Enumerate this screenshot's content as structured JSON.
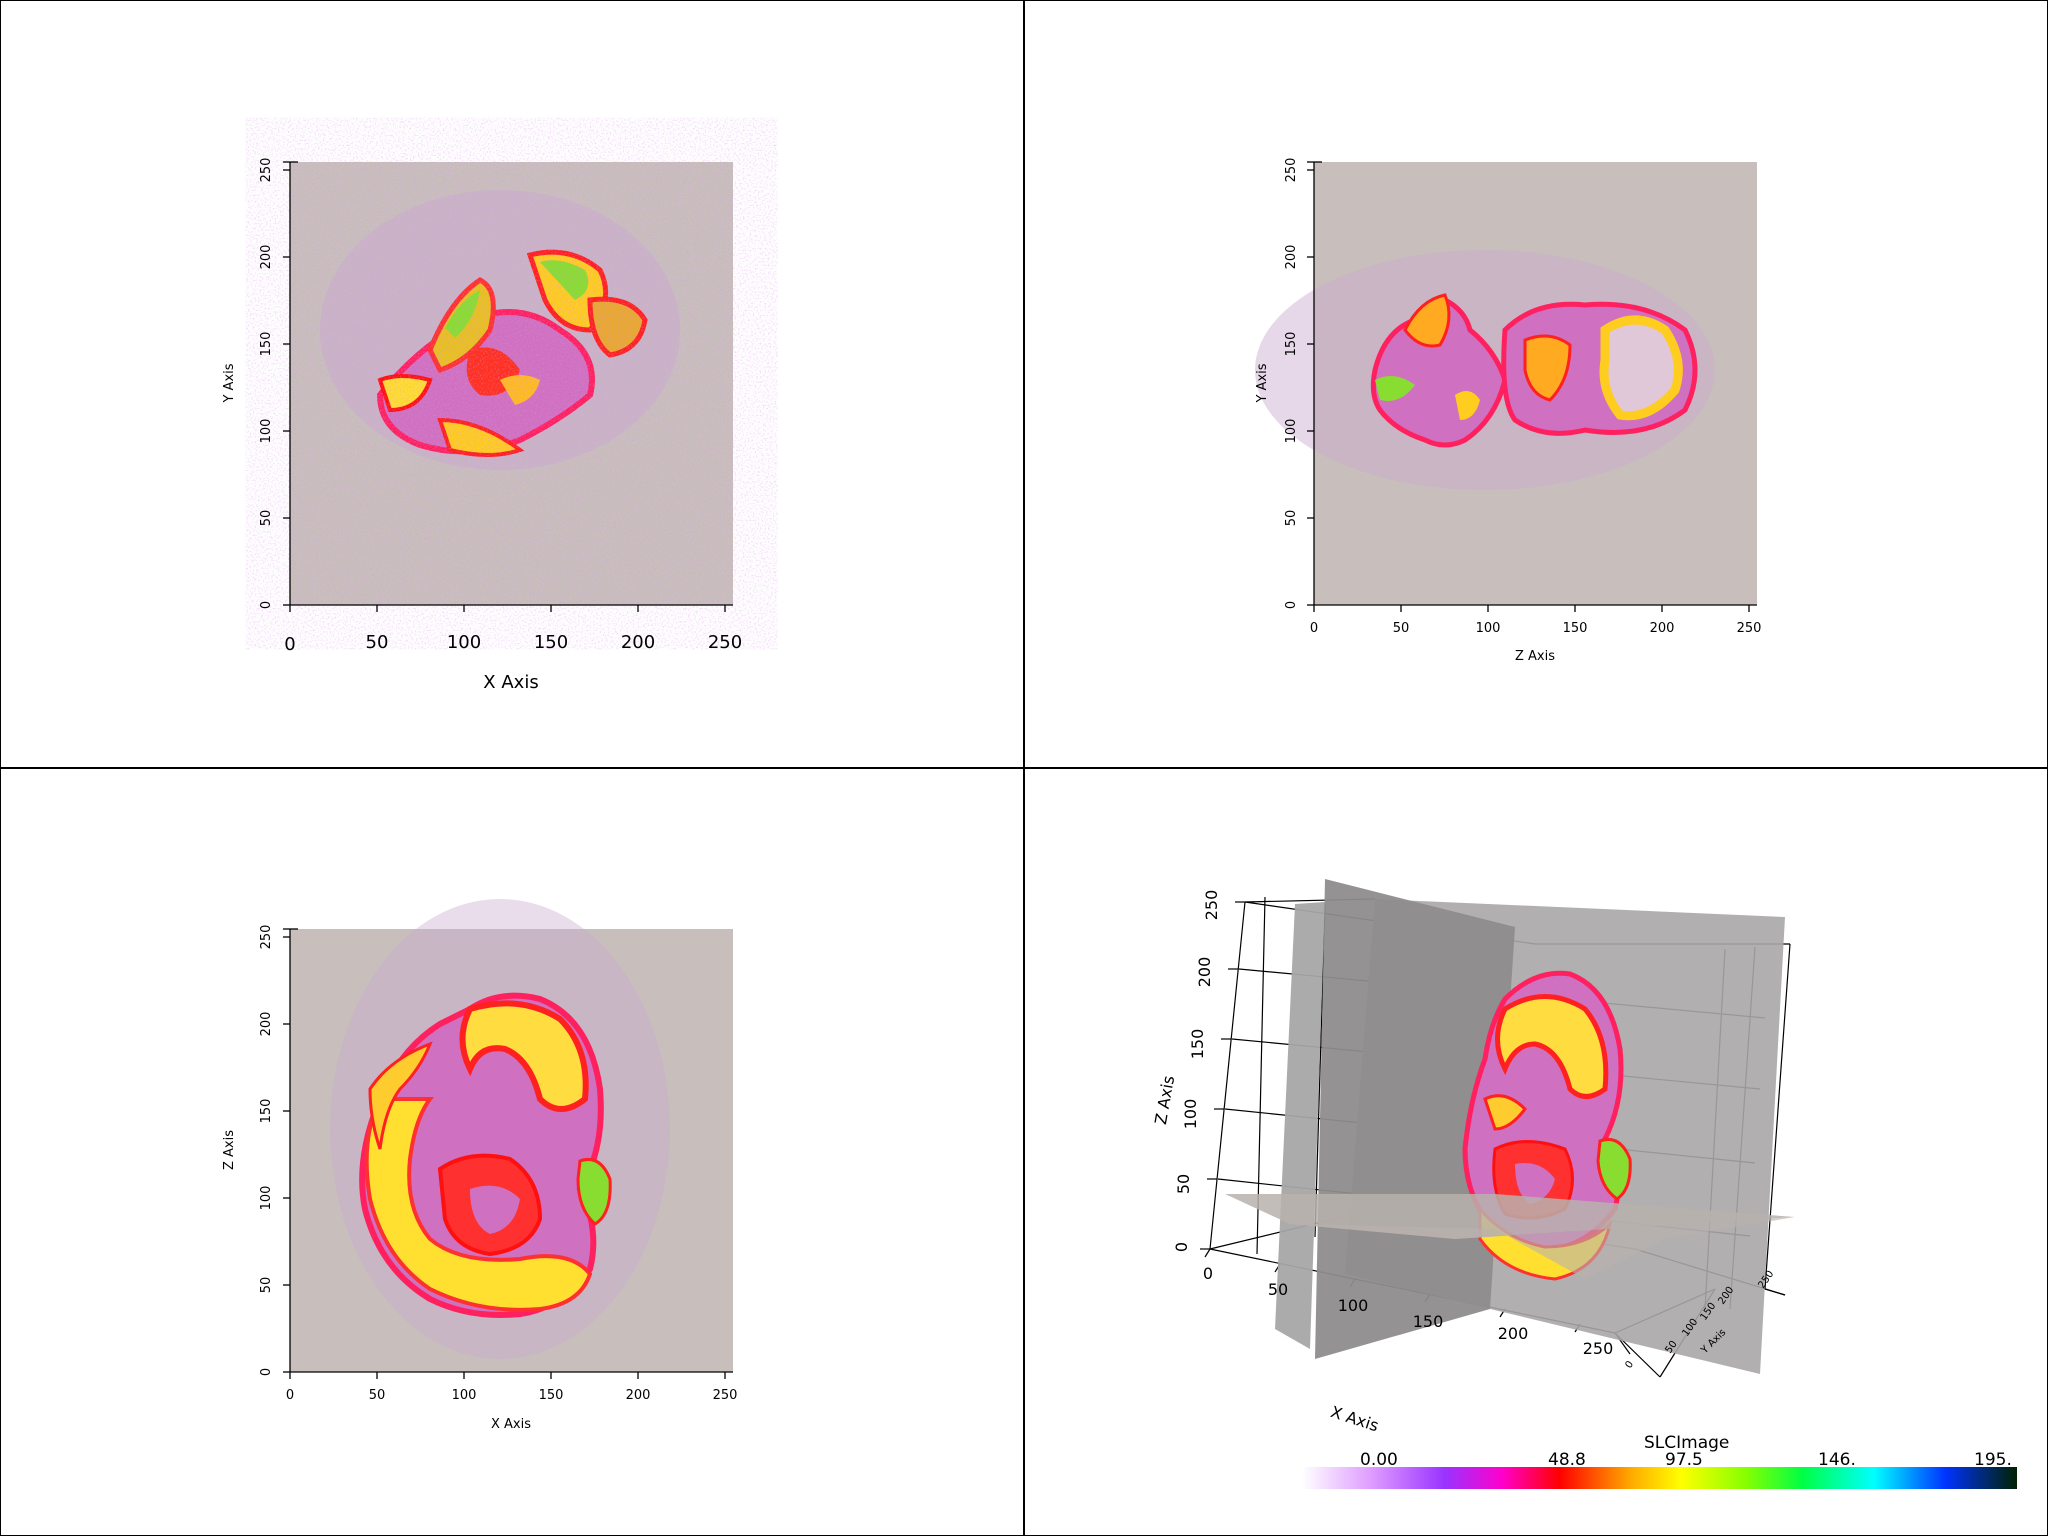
{
  "views": {
    "top_left": {
      "xlabel": "X Axis",
      "ylabel": "Y Axis",
      "xticks": [
        "0",
        "50",
        "100",
        "150",
        "200",
        "250"
      ],
      "yticks": [
        "0",
        "50",
        "100",
        "150",
        "200",
        "250"
      ]
    },
    "top_right": {
      "xlabel": "Z Axis",
      "ylabel": "Y Axis",
      "xticks": [
        "0",
        "50",
        "100",
        "150",
        "200",
        "250"
      ],
      "yticks": [
        "0",
        "50",
        "100",
        "150",
        "200",
        "250"
      ]
    },
    "bottom_left": {
      "xlabel": "X Axis",
      "ylabel": "Z Axis",
      "xticks": [
        "0",
        "50",
        "100",
        "150",
        "200",
        "250"
      ],
      "yticks": [
        "0",
        "50",
        "100",
        "150",
        "200",
        "250"
      ]
    },
    "bottom_right_3d": {
      "xlabel": "X Axis",
      "ylabel": "Y Axis",
      "zlabel": "Z Axis",
      "xticks": [
        "0",
        "50",
        "100",
        "150",
        "200",
        "250"
      ],
      "zticks": [
        "0",
        "50",
        "100",
        "150",
        "200",
        "250"
      ],
      "yticks": [
        "0",
        "50",
        "100",
        "150",
        "200",
        "250"
      ]
    }
  },
  "colorbar": {
    "title": "SLCImage",
    "labels": [
      "0.00",
      "48.8",
      "97.5",
      "146.",
      "195."
    ],
    "colors": [
      "#ffffff",
      "#cc66ff",
      "#ff00cc",
      "#ff0000",
      "#ffcc00",
      "#ffff00",
      "#66ff00",
      "#00ff66",
      "#00ffff",
      "#0044ff",
      "#002200"
    ]
  },
  "colors": {
    "slice_background": "#c8bfbc",
    "plane_gray": "#a8a6a6",
    "plane_dark": "#8e8c8c"
  }
}
